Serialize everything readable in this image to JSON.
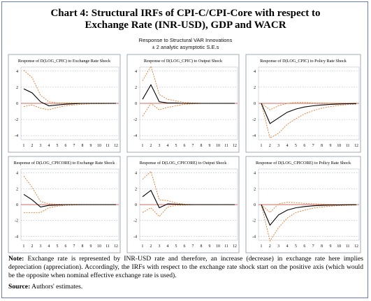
{
  "title_line1": "Chart 4: Structural IRFs of CPI-C/CPI-Core with respect to",
  "title_line2": "Exchange Rate (INR-USD), GDP and WACR",
  "subtitle_line1": "Response to Structural VAR Innovations",
  "subtitle_line2": "± 2 analytic asymptotic S.E.s",
  "note_label": "Note:",
  "note_text": " Exchange rate is represented by INR-USD rate and therefore, an increase (decrease) in exchange rate here implies depreciation (appreciation). Accordingly, the IRFs with respect to the exchange rate shock start on the positive axis (which would be the opposite when nominal effective exchange rate is used).",
  "source_label": "Source:",
  "source_text": " Authors' estimates.",
  "colors": {
    "irf": "#000000",
    "band": "#e07b2a",
    "zero": "#c0392b",
    "grid": "#9aa5b8"
  },
  "chart_data": [
    {
      "type": "line",
      "title": "Response of D(LOG_CPIC) to Exchange Rate Shock",
      "x": [
        1,
        2,
        3,
        4,
        5,
        6,
        7,
        8,
        9,
        10,
        11,
        12
      ],
      "xticks": [
        "1",
        "2",
        "3",
        "4",
        "5",
        "6",
        "7",
        "8",
        "9",
        "10",
        "11",
        "12"
      ],
      "ylim": [
        -4.5,
        4.5
      ],
      "yticks": [
        4,
        2,
        0,
        -2,
        -4
      ],
      "yticklabels": [
        "4",
        "2",
        "0",
        "-2",
        "-4"
      ],
      "irf": [
        1.8,
        1.3,
        0.2,
        -0.3,
        -0.2,
        -0.1,
        -0.05,
        0,
        0,
        0,
        0,
        0
      ],
      "upper": [
        4.1,
        3.2,
        1.0,
        0.2,
        0.05,
        0.05,
        0.05,
        0.02,
        0.02,
        0.02,
        0.02,
        0.02
      ],
      "lower": [
        -0.4,
        -0.2,
        -0.6,
        -0.8,
        -0.5,
        -0.3,
        -0.2,
        -0.1,
        -0.05,
        -0.05,
        -0.03,
        -0.02
      ]
    },
    {
      "type": "line",
      "title": "Response of D(LOG_CPIC) to Output Shock",
      "x": [
        1,
        2,
        3,
        4,
        5,
        6,
        7,
        8,
        9,
        10,
        11,
        12
      ],
      "xticks": [
        "1",
        "2",
        "3",
        "4",
        "5",
        "6",
        "7",
        "8",
        "9",
        "10",
        "11",
        "12"
      ],
      "ylim": [
        -4.5,
        4.5
      ],
      "yticks": [
        4,
        2,
        0,
        -2,
        -4
      ],
      "yticklabels": [
        "4",
        "2",
        "0",
        "-2",
        "-4"
      ],
      "irf": [
        0.5,
        2.3,
        0.2,
        0.05,
        0.05,
        0,
        0,
        0,
        0,
        0,
        0,
        0
      ],
      "upper": [
        2.8,
        4.6,
        1.1,
        0.5,
        0.3,
        0.1,
        0.05,
        0.02,
        0.02,
        0.02,
        0.02,
        0.02
      ],
      "lower": [
        -1.6,
        0.0,
        -0.8,
        -0.5,
        -0.3,
        -0.1,
        -0.05,
        -0.02,
        -0.02,
        -0.02,
        -0.02,
        -0.02
      ]
    },
    {
      "type": "line",
      "title": "Response of D(LOG_CPIC) to Policy Rate Shock",
      "x": [
        1,
        2,
        3,
        4,
        5,
        6,
        7,
        8,
        9,
        10,
        11,
        12
      ],
      "xticks": [
        "1",
        "2",
        "3",
        "4",
        "5",
        "6",
        "7",
        "8",
        "9",
        "10",
        "11",
        "12"
      ],
      "ylim": [
        -4.5,
        4.5
      ],
      "yticks": [
        4,
        2,
        0,
        -2,
        -4
      ],
      "yticklabels": [
        "4",
        "2",
        "0",
        "-2",
        "-4"
      ],
      "irf": [
        0,
        -2.5,
        -1.8,
        -1.1,
        -0.7,
        -0.45,
        -0.3,
        -0.2,
        -0.12,
        -0.08,
        -0.05,
        -0.03
      ],
      "upper": [
        0,
        -0.8,
        -0.3,
        0.0,
        0.1,
        0.1,
        0.05,
        0.05,
        0.02,
        0.02,
        0.02,
        0.02
      ],
      "lower": [
        0,
        -4.3,
        -3.7,
        -2.6,
        -1.9,
        -1.3,
        -0.9,
        -0.6,
        -0.4,
        -0.25,
        -0.15,
        -0.1
      ]
    },
    {
      "type": "line",
      "title": "Response of D(LOG_CPICORE) to Exchange Rate Shock",
      "x": [
        1,
        2,
        3,
        4,
        5,
        6,
        7,
        8,
        9,
        10,
        11,
        12
      ],
      "xticks": [
        "1",
        "2",
        "3",
        "4",
        "5",
        "6",
        "7",
        "8",
        "9",
        "10",
        "11",
        "12"
      ],
      "ylim": [
        -4.5,
        4.5
      ],
      "yticks": [
        4,
        2,
        0,
        -2,
        -4
      ],
      "yticklabels": [
        "4",
        "2",
        "0",
        "-2",
        "-4"
      ],
      "irf": [
        1.3,
        0.6,
        -0.3,
        -0.1,
        -0.05,
        0,
        0,
        0,
        0,
        0,
        0,
        0
      ],
      "upper": [
        3.6,
        2.2,
        0.4,
        0.1,
        0.05,
        0.02,
        0.02,
        0.02,
        0.02,
        0.02,
        0.02,
        0.02
      ],
      "lower": [
        -1.0,
        -1.0,
        -1.0,
        -0.4,
        -0.2,
        -0.1,
        -0.05,
        -0.02,
        -0.02,
        -0.02,
        -0.02,
        -0.02
      ]
    },
    {
      "type": "line",
      "title": "Response of D(LOG_CPICORE) to Output Shock",
      "x": [
        1,
        2,
        3,
        4,
        5,
        6,
        7,
        8,
        9,
        10,
        11,
        12
      ],
      "xticks": [
        "1",
        "2",
        "3",
        "4",
        "5",
        "6",
        "7",
        "8",
        "9",
        "10",
        "11",
        "12"
      ],
      "ylim": [
        -4.5,
        4.5
      ],
      "yticks": [
        4,
        2,
        0,
        -2,
        -4
      ],
      "yticklabels": [
        "4",
        "2",
        "0",
        "-2",
        "-4"
      ],
      "irf": [
        1.0,
        1.8,
        -0.4,
        0.1,
        0.05,
        0,
        0,
        0,
        0,
        0,
        0,
        0
      ],
      "upper": [
        3.2,
        4.2,
        0.6,
        0.5,
        0.2,
        0.05,
        0.02,
        0.02,
        0.02,
        0.02,
        0.02,
        0.02
      ],
      "lower": [
        -1.0,
        -0.4,
        -1.5,
        -0.3,
        -0.1,
        -0.05,
        -0.02,
        -0.02,
        -0.02,
        -0.02,
        -0.02,
        -0.02
      ]
    },
    {
      "type": "line",
      "title": "Response of D(LOG_CPICORE) to Policy Rate Shock",
      "x": [
        1,
        2,
        3,
        4,
        5,
        6,
        7,
        8,
        9,
        10,
        11,
        12
      ],
      "xticks": [
        "1",
        "2",
        "3",
        "4",
        "5",
        "6",
        "7",
        "8",
        "9",
        "10",
        "11",
        "12"
      ],
      "ylim": [
        -4.5,
        4.5
      ],
      "yticks": [
        4,
        2,
        0,
        -2,
        -4
      ],
      "yticklabels": [
        "4",
        "2",
        "0",
        "-2",
        "-4"
      ],
      "irf": [
        0,
        -2.6,
        -1.3,
        -0.7,
        -0.4,
        -0.25,
        -0.15,
        -0.1,
        -0.06,
        -0.04,
        -0.02,
        -0.01
      ],
      "upper": [
        0,
        -1.0,
        0.1,
        0.3,
        0.25,
        0.15,
        0.1,
        0.05,
        0.03,
        0.02,
        0.02,
        0.02
      ],
      "lower": [
        0,
        -4.6,
        -2.9,
        -1.7,
        -1.0,
        -0.7,
        -0.45,
        -0.3,
        -0.2,
        -0.12,
        -0.08,
        -0.05
      ]
    }
  ]
}
